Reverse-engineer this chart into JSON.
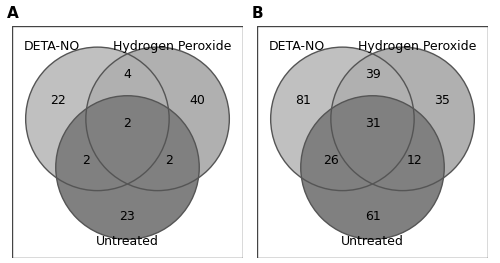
{
  "panels": [
    "A",
    "B"
  ],
  "panel_A": {
    "label": "A",
    "circle_labels": [
      "DETA-NO",
      "Hydrogen Peroxide",
      "Untreated"
    ],
    "values": {
      "deta_only": "22",
      "h2o2_only": "40",
      "untreated_only": "23",
      "deta_h2o2": "4",
      "deta_untreated": "2",
      "h2o2_untreated": "2",
      "all_three": "2"
    }
  },
  "panel_B": {
    "label": "B",
    "circle_labels": [
      "DETA-NO",
      "Hydrogen Peroxide",
      "Untreated"
    ],
    "values": {
      "deta_only": "81",
      "h2o2_only": "35",
      "untreated_only": "61",
      "deta_h2o2": "39",
      "deta_untreated": "26",
      "h2o2_untreated": "12",
      "all_three": "31"
    }
  },
  "colors": {
    "deta": "#c0c0c0",
    "h2o2": "#b0b0b0",
    "untreated": "#808080",
    "background": "#ffffff",
    "edge": "#555555"
  },
  "font_size": 9,
  "label_font_size": 9,
  "panel_label_font_size": 11
}
